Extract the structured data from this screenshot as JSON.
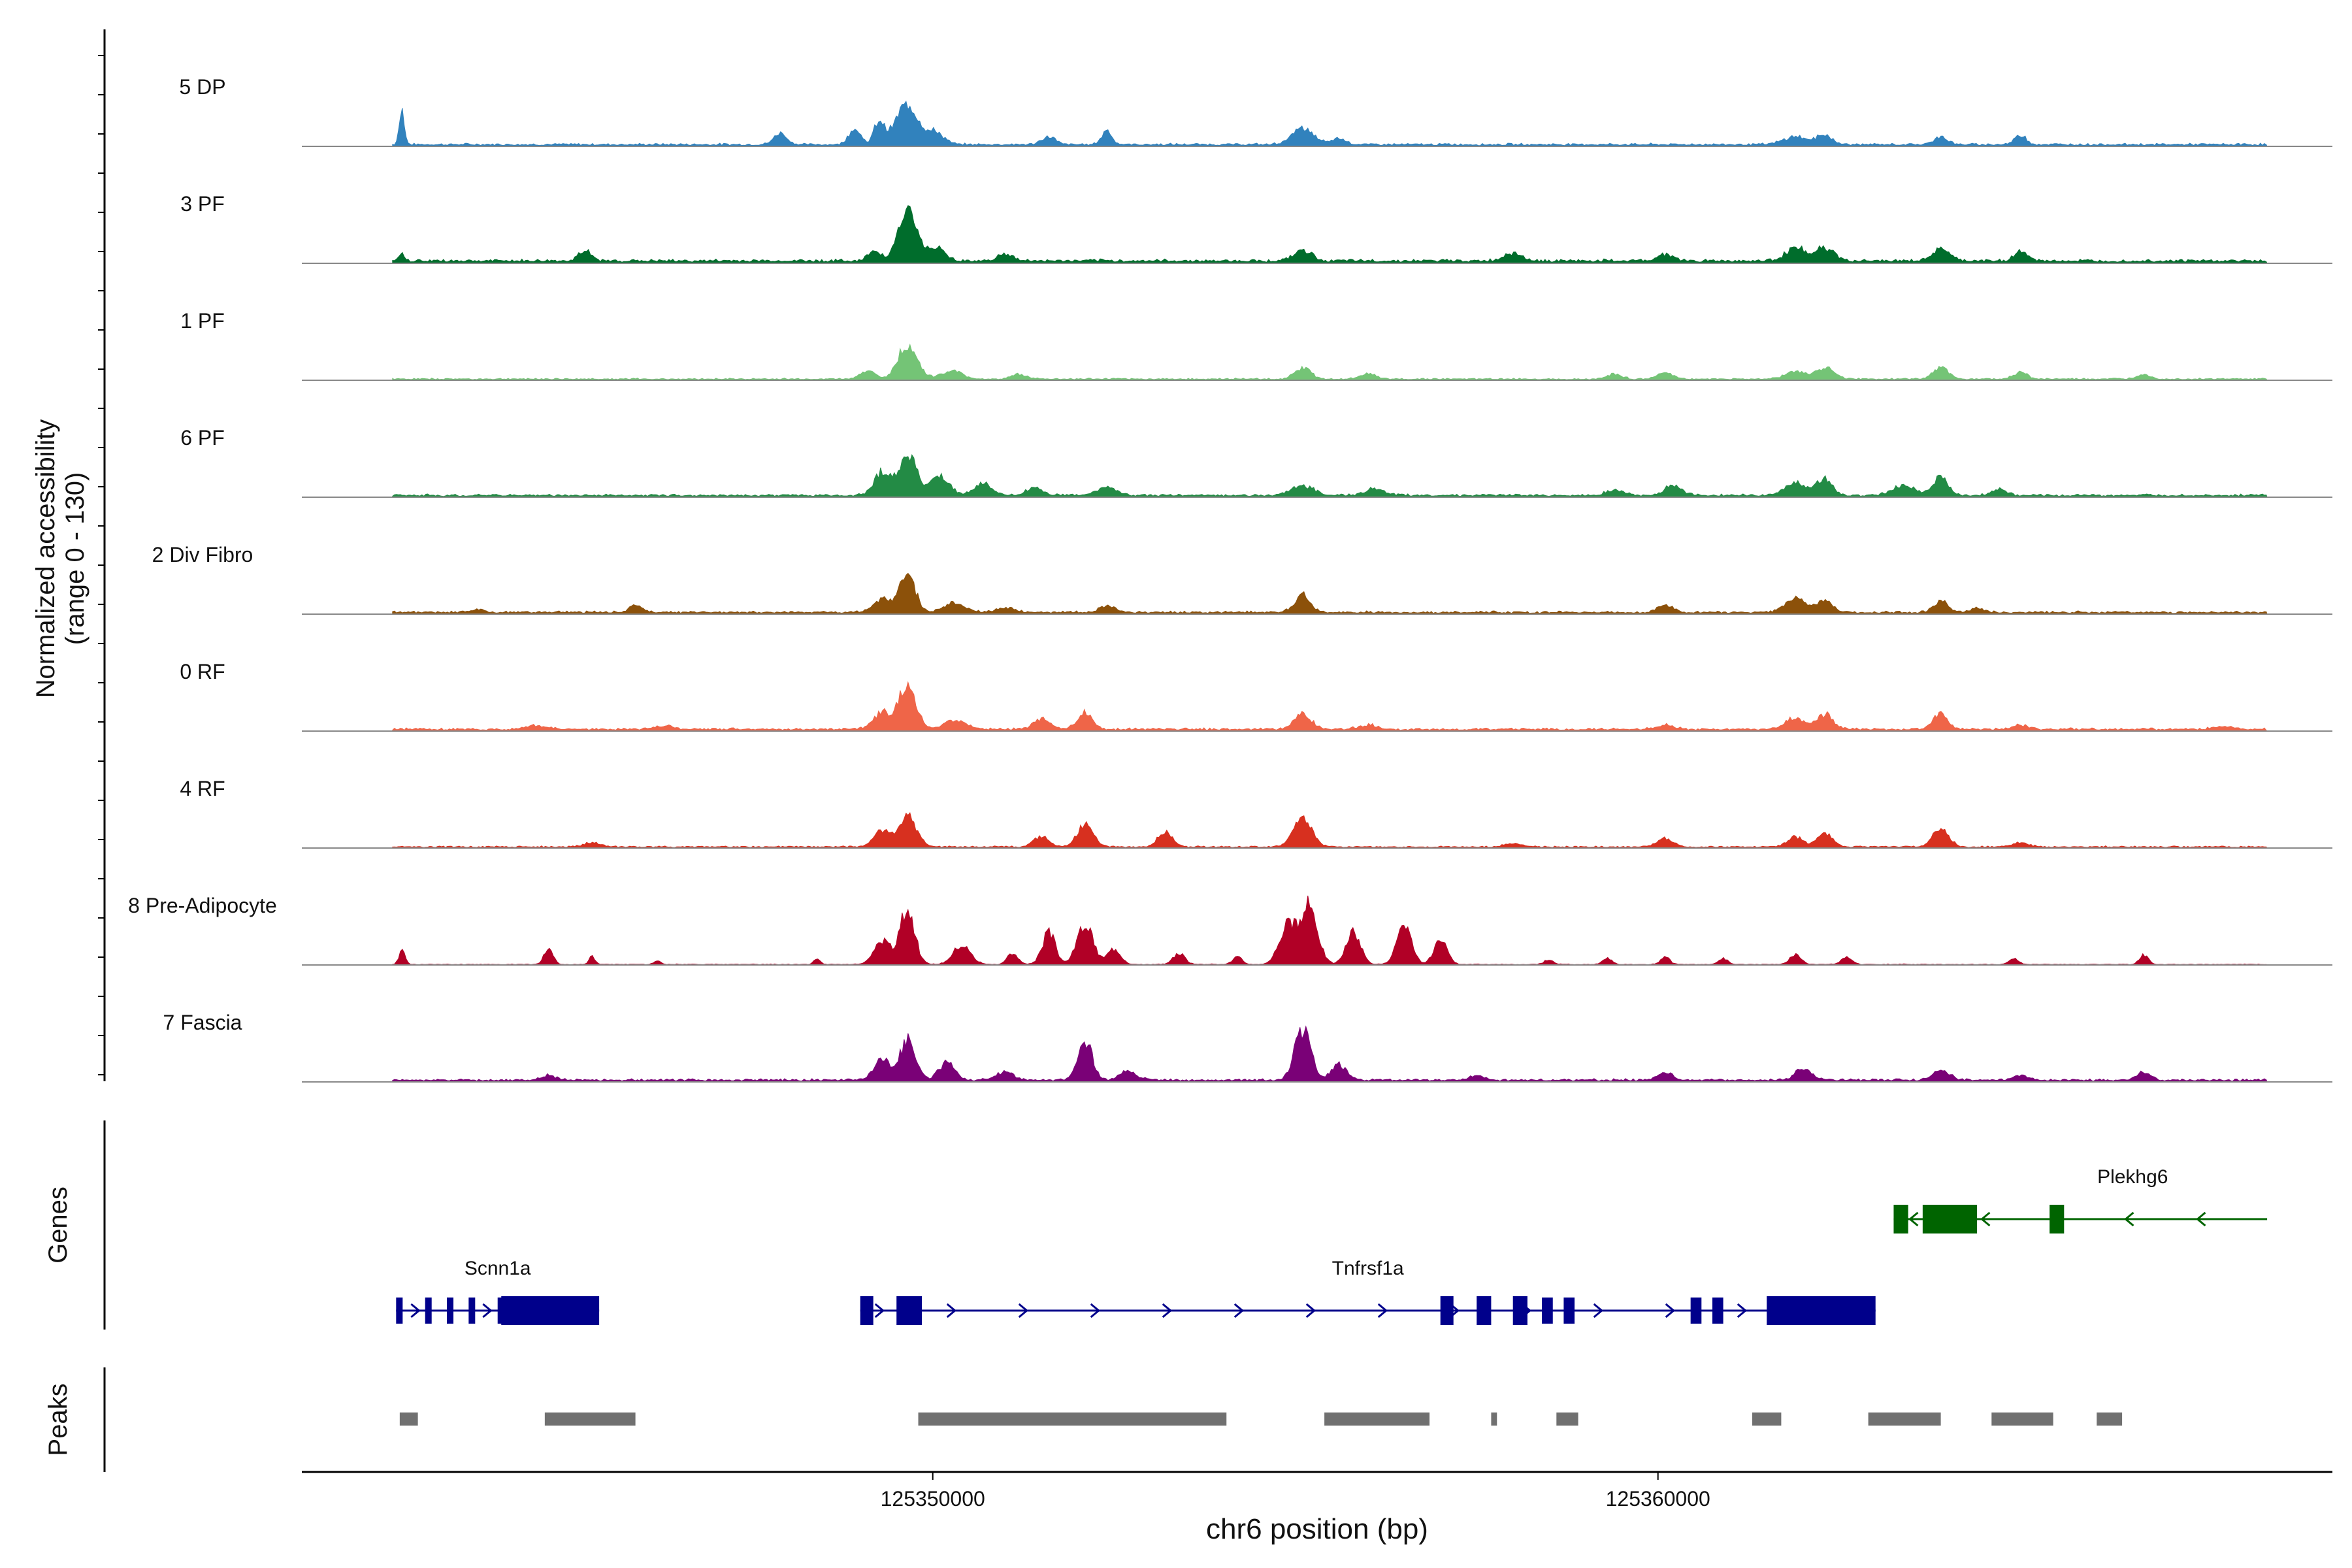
{
  "chart_data": {
    "type": "area",
    "title": "",
    "ylabel_line1": "Normalized accessibility",
    "ylabel_line2": "(range 0 - 130)",
    "y_range": [
      0,
      130
    ],
    "xlabel": "chr6 position (bp)",
    "x_range": [
      125341300,
      125369300
    ],
    "x_ticks": [
      {
        "value": 125350000,
        "label": "125350000"
      },
      {
        "value": 125360000,
        "label": "125360000"
      }
    ],
    "tracks": [
      {
        "name": "5 DP",
        "color": "#3182bd",
        "peaks": [
          [
            125342680,
            42,
            35
          ],
          [
            125347900,
            14,
            90
          ],
          [
            125348920,
            20,
            80
          ],
          [
            125349650,
            50,
            160
          ],
          [
            125349260,
            28,
            70
          ],
          [
            125350050,
            14,
            110
          ],
          [
            125351600,
            10,
            90
          ],
          [
            125352400,
            18,
            70
          ],
          [
            125355100,
            20,
            150
          ],
          [
            125355600,
            8,
            100
          ],
          [
            125361900,
            10,
            160
          ],
          [
            125362300,
            12,
            100
          ],
          [
            125363900,
            10,
            90
          ],
          [
            125365000,
            12,
            80
          ]
        ],
        "base": 3
      },
      {
        "name": "3 PF",
        "color": "#006d2c",
        "peaks": [
          [
            125342680,
            10,
            35
          ],
          [
            125345200,
            12,
            90
          ],
          [
            125349200,
            12,
            90
          ],
          [
            125349650,
            60,
            130
          ],
          [
            125350050,
            16,
            120
          ],
          [
            125351000,
            8,
            110
          ],
          [
            125355100,
            14,
            120
          ],
          [
            125358000,
            10,
            120
          ],
          [
            125360100,
            8,
            110
          ],
          [
            125361900,
            16,
            140
          ],
          [
            125362300,
            16,
            120
          ],
          [
            125363900,
            16,
            110
          ],
          [
            125365000,
            12,
            90
          ]
        ],
        "base": 4
      },
      {
        "name": "1 PF",
        "color": "#74c476",
        "peaks": [
          [
            125349100,
            10,
            100
          ],
          [
            125349650,
            42,
            130
          ],
          [
            125350250,
            10,
            150
          ],
          [
            125351200,
            6,
            100
          ],
          [
            125355100,
            14,
            110
          ],
          [
            125356000,
            6,
            120
          ],
          [
            125359400,
            6,
            100
          ],
          [
            125360100,
            8,
            110
          ],
          [
            125361900,
            10,
            140
          ],
          [
            125362300,
            14,
            120
          ],
          [
            125363900,
            14,
            110
          ],
          [
            125365000,
            8,
            100
          ],
          [
            125366700,
            6,
            90
          ]
        ],
        "base": 2
      },
      {
        "name": "6 PF",
        "color": "#238b45",
        "peaks": [
          [
            125349300,
            28,
            110
          ],
          [
            125349650,
            52,
            120
          ],
          [
            125350100,
            24,
            130
          ],
          [
            125350700,
            14,
            120
          ],
          [
            125351400,
            10,
            110
          ],
          [
            125352400,
            10,
            130
          ],
          [
            125355100,
            12,
            160
          ],
          [
            125356100,
            8,
            140
          ],
          [
            125359400,
            6,
            120
          ],
          [
            125360200,
            12,
            120
          ],
          [
            125361900,
            16,
            140
          ],
          [
            125362300,
            20,
            110
          ],
          [
            125363400,
            12,
            160
          ],
          [
            125363900,
            24,
            100
          ],
          [
            125364700,
            8,
            100
          ]
        ],
        "base": 3
      },
      {
        "name": "2 Div Fibro",
        "color": "#8c510a",
        "peaks": [
          [
            125343700,
            3,
            100
          ],
          [
            125345900,
            10,
            80
          ],
          [
            125349300,
            16,
            120
          ],
          [
            125349650,
            46,
            110
          ],
          [
            125350300,
            12,
            140
          ],
          [
            125351000,
            6,
            120
          ],
          [
            125352400,
            8,
            110
          ],
          [
            125355100,
            22,
            110
          ],
          [
            125360100,
            8,
            110
          ],
          [
            125361900,
            18,
            140
          ],
          [
            125362300,
            14,
            110
          ],
          [
            125363900,
            14,
            100
          ],
          [
            125364400,
            5,
            100
          ]
        ],
        "base": 3
      },
      {
        "name": "0 RF",
        "color": "#ef6548",
        "peaks": [
          [
            125344500,
            5,
            140
          ],
          [
            125346300,
            4,
            120
          ],
          [
            125349300,
            20,
            120
          ],
          [
            125349650,
            56,
            120
          ],
          [
            125350300,
            12,
            150
          ],
          [
            125351500,
            14,
            110
          ],
          [
            125352100,
            20,
            100
          ],
          [
            125355100,
            18,
            120
          ],
          [
            125356000,
            5,
            130
          ],
          [
            125360100,
            5,
            120
          ],
          [
            125361900,
            14,
            140
          ],
          [
            125362300,
            18,
            110
          ],
          [
            125363900,
            20,
            100
          ],
          [
            125365000,
            5,
            120
          ],
          [
            125367800,
            4,
            140
          ]
        ],
        "base": 3
      },
      {
        "name": "4 RF",
        "color": "#d7301f",
        "peaks": [
          [
            125345300,
            5,
            110
          ],
          [
            125349300,
            20,
            110
          ],
          [
            125349650,
            40,
            120
          ],
          [
            125351500,
            14,
            100
          ],
          [
            125352100,
            28,
            110
          ],
          [
            125353200,
            18,
            100
          ],
          [
            125355100,
            40,
            120
          ],
          [
            125358000,
            4,
            120
          ],
          [
            125360100,
            10,
            110
          ],
          [
            125361900,
            12,
            110
          ],
          [
            125362300,
            16,
            100
          ],
          [
            125363900,
            22,
            110
          ],
          [
            125365000,
            5,
            110
          ]
        ],
        "base": 2
      },
      {
        "name": "8 Pre-Adipocyte",
        "color": "#b10026",
        "peaks": [
          [
            125342680,
            18,
            40
          ],
          [
            125344700,
            20,
            60
          ],
          [
            125345300,
            10,
            40
          ],
          [
            125346200,
            5,
            40
          ],
          [
            125348400,
            8,
            40
          ],
          [
            125349300,
            30,
            110
          ],
          [
            125349650,
            70,
            100
          ],
          [
            125350400,
            24,
            120
          ],
          [
            125351100,
            14,
            70
          ],
          [
            125351600,
            40,
            90
          ],
          [
            125352100,
            50,
            110
          ],
          [
            125352500,
            20,
            90
          ],
          [
            125353400,
            14,
            80
          ],
          [
            125354200,
            10,
            60
          ],
          [
            125354900,
            50,
            120
          ],
          [
            125355200,
            72,
            110
          ],
          [
            125355800,
            40,
            100
          ],
          [
            125356500,
            46,
            100
          ],
          [
            125357000,
            30,
            90
          ],
          [
            125358500,
            6,
            60
          ],
          [
            125359300,
            8,
            60
          ],
          [
            125360100,
            10,
            60
          ],
          [
            125360900,
            8,
            60
          ],
          [
            125361900,
            12,
            80
          ],
          [
            125362600,
            10,
            70
          ],
          [
            125364900,
            8,
            60
          ],
          [
            125366700,
            12,
            60
          ]
        ],
        "base": 1
      },
      {
        "name": "7 Fascia",
        "color": "#7a0177",
        "peaks": [
          [
            125344700,
            6,
            110
          ],
          [
            125349300,
            26,
            110
          ],
          [
            125349650,
            48,
            110
          ],
          [
            125350200,
            22,
            110
          ],
          [
            125351000,
            10,
            110
          ],
          [
            125352100,
            48,
            100
          ],
          [
            125352700,
            12,
            110
          ],
          [
            125355100,
            64,
            110
          ],
          [
            125355600,
            20,
            100
          ],
          [
            125357500,
            6,
            110
          ],
          [
            125360100,
            10,
            110
          ],
          [
            125362000,
            14,
            110
          ],
          [
            125363900,
            14,
            110
          ],
          [
            125365000,
            6,
            110
          ],
          [
            125366700,
            10,
            90
          ]
        ],
        "base": 3
      }
    ],
    "genes_label": "Genes",
    "genes": [
      {
        "name": "Scnn1a",
        "strand": "+",
        "color": "#00008b",
        "start": 125342600,
        "end": 125345400,
        "exons": [
          [
            125342600,
            125342650
          ],
          [
            125343000,
            125343060
          ],
          [
            125343300,
            125343350
          ],
          [
            125343600,
            125343660
          ],
          [
            125344000,
            125344050
          ],
          [
            125344050,
            125345400
          ]
        ]
      },
      {
        "name": "Tnfrsf1a",
        "strand": "+",
        "color": "#00008b",
        "start": 125349000,
        "end": 125363000,
        "exons": [
          [
            125349000,
            125349180
          ],
          [
            125349500,
            125349850
          ],
          [
            125357000,
            125357180
          ],
          [
            125357500,
            125357700
          ],
          [
            125358000,
            125358200
          ],
          [
            125358400,
            125358550
          ],
          [
            125358700,
            125358850
          ],
          [
            125360450,
            125360600
          ],
          [
            125360750,
            125360900
          ],
          [
            125361500,
            125363000
          ]
        ]
      },
      {
        "name": "Plekhg6",
        "strand": "-",
        "color": "#006400",
        "start": 125363250,
        "end": 125368400,
        "exons": [
          [
            125363250,
            125363450
          ],
          [
            125363650,
            125364400
          ],
          [
            125365400,
            125365600
          ]
        ]
      }
    ],
    "peaks_label": "Peaks",
    "peak_regions": [
      [
        125342650,
        125342900
      ],
      [
        125344650,
        125345900
      ],
      [
        125349800,
        125354050
      ],
      [
        125355400,
        125356850
      ],
      [
        125357700,
        125357780
      ],
      [
        125358600,
        125358900
      ],
      [
        125361300,
        125361700
      ],
      [
        125362900,
        125363900
      ],
      [
        125364600,
        125365450
      ],
      [
        125366050,
        125366400
      ]
    ],
    "peak_color": "#707070"
  }
}
